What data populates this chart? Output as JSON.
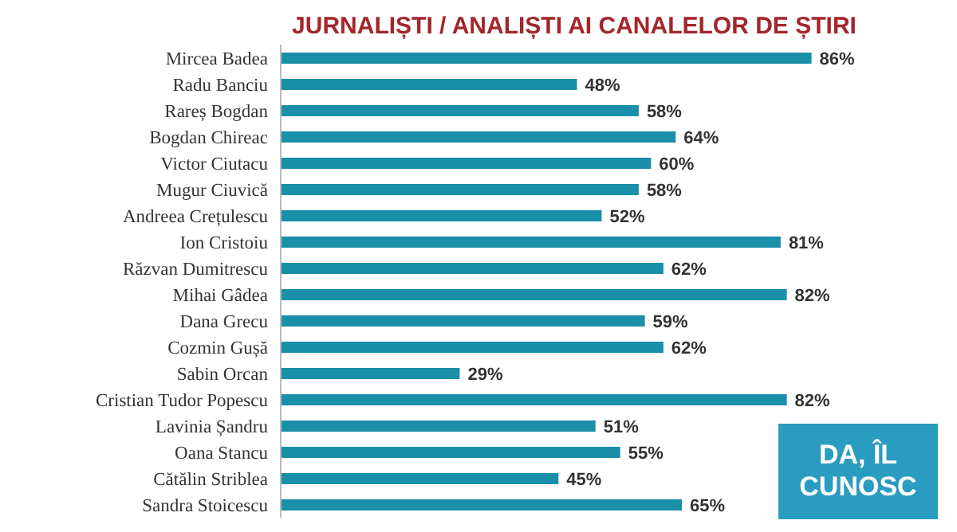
{
  "chart_data": {
    "type": "bar",
    "orientation": "horizontal",
    "title": "JURNALIȘTI / ANALIȘTI AI CANALELOR DE ȘTIRI",
    "categories": [
      "Mircea Badea",
      "Radu Banciu",
      "Rareș Bogdan",
      "Bogdan Chireac",
      "Victor Ciutacu",
      "Mugur Ciuvică",
      "Andreea Crețulescu",
      "Ion Cristoiu",
      "Răzvan Dumitrescu",
      "Mihai Gâdea",
      "Dana Grecu",
      "Cozmin Gușă",
      "Sabin Orcan",
      "Cristian Tudor Popescu",
      "Lavinia Șandru",
      "Oana Stancu",
      "Cătălin Striblea",
      "Sandra Stoicescu"
    ],
    "values": [
      86,
      48,
      58,
      64,
      60,
      58,
      52,
      81,
      62,
      82,
      59,
      62,
      29,
      82,
      51,
      55,
      45,
      65
    ],
    "value_labels": [
      "86%",
      "48%",
      "58%",
      "64%",
      "60%",
      "58%",
      "52%",
      "81%",
      "62%",
      "82%",
      "59%",
      "62%",
      "29%",
      "82%",
      "51%",
      "55%",
      "45%",
      "65%"
    ],
    "color": "#1a8fa8",
    "tick_labels": "y",
    "legend": false,
    "annotations": [
      "DA, ÎL CUNOSC"
    ]
  }
}
